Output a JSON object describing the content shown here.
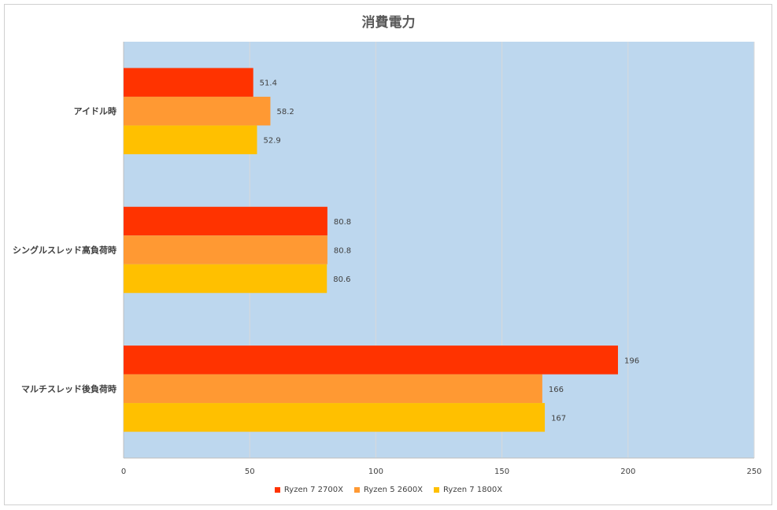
{
  "chart_data": {
    "type": "bar",
    "orientation": "horizontal",
    "title": "消費電力",
    "categories": [
      "アイドル時",
      "シングルスレッド高負荷時",
      "マルチスレッド後負荷時"
    ],
    "series": [
      {
        "name": "Ryzen 7 2700X",
        "color": "#ff3300",
        "values": [
          51.4,
          80.8,
          196
        ],
        "labels": [
          "51.4",
          "80.8",
          "196"
        ]
      },
      {
        "name": "Ryzen 5 2600X",
        "color": "#ff9933",
        "values": [
          58.2,
          80.8,
          166
        ],
        "labels": [
          "58.2",
          "80.8",
          "166"
        ]
      },
      {
        "name": "Ryzen 7 1800X",
        "color": "#ffc000",
        "values": [
          52.9,
          80.6,
          167
        ],
        "labels": [
          "52.9",
          "80.6",
          "167"
        ]
      }
    ],
    "xlim": [
      0,
      250
    ],
    "xticks": [
      0,
      50,
      100,
      150,
      200,
      250
    ],
    "grid": "vertical",
    "legend_position": "bottom",
    "plot_background": "#bdd7ee"
  }
}
